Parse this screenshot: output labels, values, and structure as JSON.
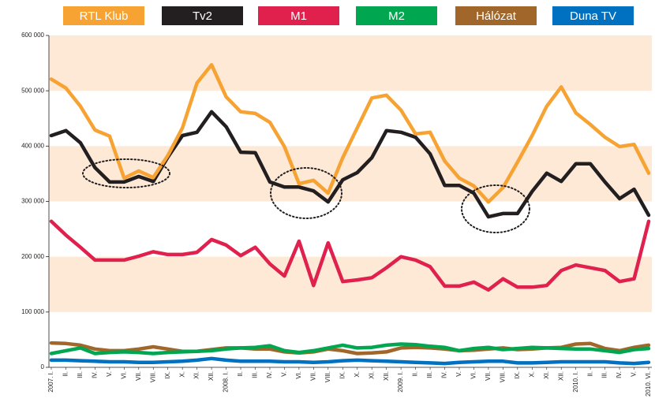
{
  "chart_data": {
    "type": "line",
    "categories": [
      "2007. I.",
      "II.",
      "III.",
      "IV.",
      "V.",
      "VI.",
      "VII.",
      "VIII.",
      "IX.",
      "X.",
      "XI.",
      "XII.",
      "2008. I.",
      "II.",
      "III.",
      "IV.",
      "V.",
      "VI.",
      "VII.",
      "VIII.",
      "IX.",
      "X.",
      "XI.",
      "XII.",
      "2009. I.",
      "II.",
      "III.",
      "IV.",
      "V.",
      "VI.",
      "VII.",
      "VIII.",
      "IX.",
      "X.",
      "XI.",
      "XII.",
      "2010. I.",
      "II.",
      "III.",
      "IV.",
      "V.",
      "2010. VI."
    ],
    "series": [
      {
        "name": "RTL Klub",
        "color": "#f7a334",
        "values": [
          521000,
          505000,
          472000,
          429000,
          418000,
          342000,
          355000,
          343000,
          383000,
          433000,
          514000,
          547000,
          489000,
          462000,
          459000,
          443000,
          399000,
          332000,
          338000,
          315000,
          379000,
          433000,
          487000,
          492000,
          465000,
          422000,
          425000,
          373000,
          342000,
          328000,
          299000,
          325000,
          371000,
          419000,
          472000,
          507000,
          460000,
          439000,
          416000,
          399000,
          403000,
          351000
        ]
      },
      {
        "name": "Tv2",
        "color": "#231f20",
        "values": [
          419000,
          428000,
          406000,
          361000,
          335000,
          335000,
          345000,
          336000,
          380000,
          419000,
          425000,
          462000,
          435000,
          389000,
          388000,
          335000,
          326000,
          326000,
          319000,
          299000,
          339000,
          352000,
          379000,
          428000,
          425000,
          416000,
          386000,
          329000,
          329000,
          315000,
          272000,
          278000,
          278000,
          318000,
          351000,
          336000,
          368000,
          368000,
          335000,
          305000,
          322000,
          275000
        ]
      },
      {
        "name": "M1",
        "color": "#e0204d",
        "values": [
          264000,
          239000,
          217000,
          194000,
          194000,
          194000,
          201000,
          209000,
          204000,
          204000,
          208000,
          231000,
          221000,
          202000,
          217000,
          187000,
          165000,
          228000,
          148000,
          225000,
          155000,
          158000,
          162000,
          180000,
          200000,
          194000,
          182000,
          147000,
          147000,
          154000,
          140000,
          160000,
          145000,
          145000,
          148000,
          175000,
          185000,
          180000,
          175000,
          155000,
          160000,
          264000
        ]
      },
      {
        "name": "M2",
        "color": "#00a650",
        "values": [
          25000,
          30000,
          35000,
          25000,
          27000,
          28000,
          27000,
          25000,
          27000,
          28000,
          29000,
          30000,
          33000,
          35000,
          36000,
          39000,
          30000,
          27000,
          30000,
          35000,
          40000,
          35000,
          36000,
          40000,
          42000,
          41000,
          38000,
          36000,
          30000,
          34000,
          36000,
          32000,
          34000,
          36000,
          35000,
          34000,
          33000,
          33000,
          30000,
          27000,
          32000,
          34000
        ]
      },
      {
        "name": "Hálózat",
        "color": "#a0662a",
        "values": [
          44000,
          43000,
          40000,
          33000,
          30000,
          30000,
          33000,
          37000,
          33000,
          29000,
          29000,
          32000,
          35000,
          35000,
          33000,
          33000,
          28000,
          26000,
          28000,
          33000,
          30000,
          25000,
          26000,
          28000,
          35000,
          36000,
          35000,
          33000,
          30000,
          31000,
          33000,
          35000,
          32000,
          33000,
          35000,
          36000,
          42000,
          43000,
          34000,
          30000,
          36000,
          40000
        ]
      },
      {
        "name": "Duna TV",
        "color": "#0070c0",
        "values": [
          13000,
          13000,
          12000,
          11000,
          10000,
          10000,
          9000,
          9000,
          10000,
          11000,
          13000,
          16000,
          13000,
          11000,
          11000,
          11000,
          10000,
          10000,
          9000,
          10000,
          12000,
          13000,
          12000,
          11000,
          10000,
          9000,
          8000,
          7000,
          9000,
          10000,
          11000,
          11000,
          8000,
          8000,
          9000,
          10000,
          10000,
          10000,
          10000,
          8000,
          7000,
          9000
        ]
      }
    ],
    "ylim": [
      0,
      600000
    ],
    "yticks": [
      0,
      {
        "value": 100000,
        "label": "100 000"
      },
      {
        "value": 200000,
        "label": "200 000"
      },
      {
        "value": 300000,
        "label": "300 000"
      },
      {
        "value": 400000,
        "label": "400 000"
      },
      {
        "value": 500000,
        "label": "500 000"
      },
      {
        "value": 600000,
        "label": "600 000"
      }
    ],
    "legend": "top"
  }
}
